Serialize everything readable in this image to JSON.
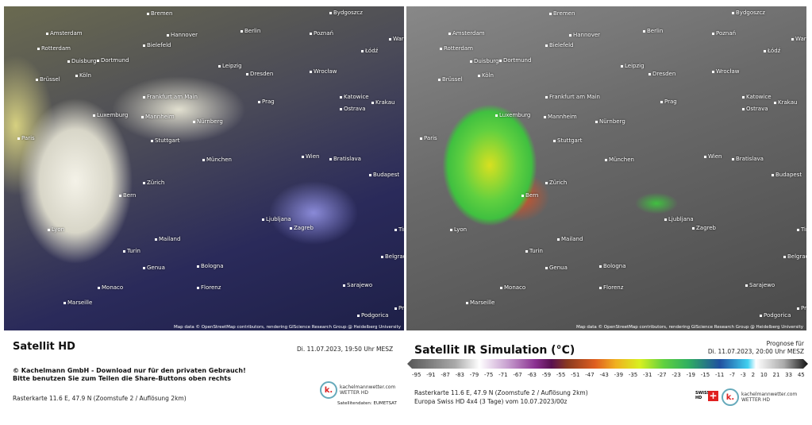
{
  "left_panel": {
    "title": "Satellit HD",
    "datetime": "Di. 11.07.2023, 19:50 Uhr MESZ",
    "copyright": "© Kachelmann GmbH - Download nur für den privaten Gebrauch!",
    "share_note": "Bitte benutzen Sie zum Teilen die Share-Buttons oben rechts",
    "raster": "Rasterkarte 11.6 E, 47.9 N (Zoomstufe 2 / Auflösung 2km)",
    "logo_text": "kachelmannwetter.com",
    "logo_sub": "WETTER HD",
    "source": "Satellitendaten: EUMETSAT",
    "attribution": "Map data © OpenStreetMap contributors, rendering GIScience Research Group @ Heidelberg University"
  },
  "right_panel": {
    "title": "Satellit IR Simulation (°C)",
    "forecast_label": "Prognose für",
    "datetime": "Di. 11.07.2023, 20:00 Uhr MESZ",
    "raster": "Rasterkarte 11.6 E, 47.9 N (Zoomstufe 2 / Auflösung 2km)",
    "model": "Europa Swiss HD 4x4 (3 Tage) vom  10.07.2023/00z",
    "logo_text": "kachelmannwetter.com",
    "logo_sub": "WETTER HD",
    "swiss_label": "SWISS HD",
    "attribution": "Map data © OpenStreetMap contributors, rendering GIScience Research Group @ Heidelberg University"
  },
  "colorbar_ticks": [
    "-95",
    "-91",
    "-87",
    "-83",
    "-79",
    "-75",
    "-71",
    "-67",
    "-63",
    "-59",
    "-55",
    "-51",
    "-47",
    "-43",
    "-39",
    "-35",
    "-31",
    "-27",
    "-23",
    "-19",
    "-15",
    "-11",
    "-7",
    "-3",
    "2",
    "10",
    "21",
    "33",
    "45"
  ],
  "cities": [
    "Bremen",
    "Bydgoszcz",
    "Amsterdam",
    "Hannover",
    "Berlin",
    "Poznań",
    "Warschau",
    "Rotterdam",
    "Bielefeld",
    "Łódź",
    "Duisburg",
    "Dortmund",
    "Leipzig",
    "Wrocław",
    "Köln",
    "Dresden",
    "Brüssel",
    "Katowice",
    "Krakau",
    "Frankfurt am Main",
    "Luxemburg",
    "Mannheim",
    "Nürnberg",
    "Prag",
    "Ostrava",
    "Paris",
    "Stuttgart",
    "Wien",
    "Bratislava",
    "München",
    "Budapest",
    "Zürich",
    "Bern",
    "Ljubljana",
    "Zagreb",
    "Lyon",
    "Mailand",
    "Turin",
    "Timișoara",
    "Genua",
    "Bologna",
    "Belgrad",
    "Florenz",
    "Monaco",
    "Sarajewo",
    "Marseille",
    "Podgorica",
    "Prishtina"
  ]
}
